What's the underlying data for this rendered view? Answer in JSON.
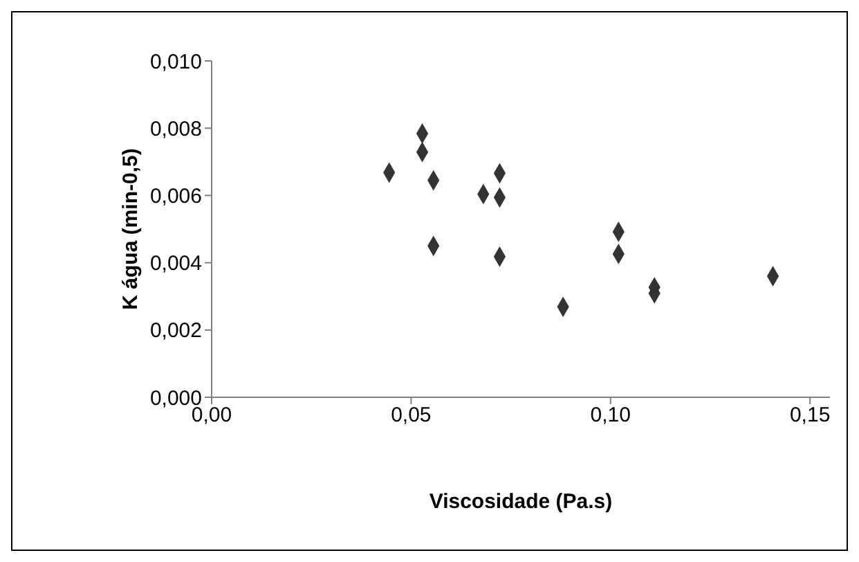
{
  "chart_data": {
    "type": "scatter",
    "xlabel": "Viscosidade (Pa.s)",
    "ylabel": "K água (min-0,5)",
    "x": [
      0.0445,
      0.0528,
      0.0528,
      0.0556,
      0.0556,
      0.0681,
      0.0722,
      0.0722,
      0.0722,
      0.0881,
      0.102,
      0.102,
      0.111,
      0.111,
      0.1407
    ],
    "series": [
      {
        "color": "#333333",
        "values": [
          0.00668,
          0.00784,
          0.00729,
          0.00645,
          0.0045,
          0.00604,
          0.00666,
          0.00594,
          0.00418,
          0.00269,
          0.00492,
          0.00426,
          0.00327,
          0.00309,
          0.0036
        ]
      }
    ],
    "xlim": [
      0,
      0.155
    ],
    "ylim": [
      0,
      0.01
    ],
    "xticks": [
      {
        "value": 0,
        "label": "0,00"
      },
      {
        "value": 0.05,
        "label": "0,05"
      },
      {
        "value": 0.1,
        "label": "0,10"
      },
      {
        "value": 0.15,
        "label": "0,15"
      }
    ],
    "yticks": [
      {
        "value": 0,
        "label": "0,000"
      },
      {
        "value": 0.002,
        "label": "0,002"
      },
      {
        "value": 0.004,
        "label": "0,004"
      },
      {
        "value": 0.006,
        "label": "0,006"
      },
      {
        "value": 0.008,
        "label": "0,008"
      },
      {
        "value": 0.01,
        "label": "0,010"
      }
    ],
    "marker": "diamond",
    "grid": false
  }
}
